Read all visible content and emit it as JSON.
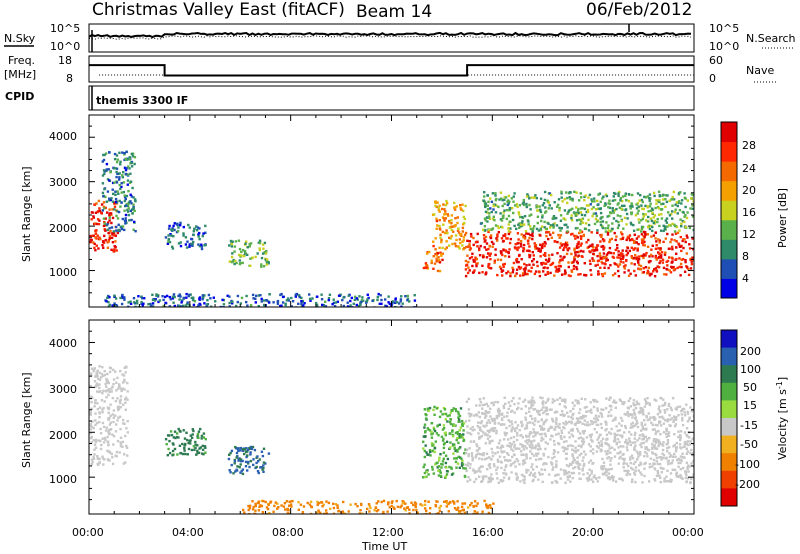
{
  "title_left": "Christmas Valley East (fitACF)",
  "title_beam": "Beam 14",
  "title_date": "06/Feb/2012",
  "panel_nsky": {
    "left_label": "N.Sky",
    "right_label": "N.Search",
    "left_ticks": [
      "10^5",
      "10^0"
    ],
    "right_ticks": [
      "10^5",
      "10^0"
    ]
  },
  "panel_freq": {
    "left_label_1": "Freq.",
    "left_label_2": "[MHz]",
    "right_label": "Nave",
    "left_ticks": [
      "18",
      "8"
    ],
    "right_ticks": [
      "60",
      "0"
    ]
  },
  "cpid": {
    "label": "CPID",
    "program": "themis 3300 IF"
  },
  "x_axis": {
    "label": "Time UT",
    "ticks": [
      "00:00",
      "04:00",
      "08:00",
      "12:00",
      "16:00",
      "20:00",
      "00:00"
    ]
  },
  "power_panel": {
    "ylabel": "Slant Range [km]",
    "yticks": [
      "4000",
      "3000",
      "2000",
      "1000"
    ],
    "colorbar_label": "Power [dB]",
    "colorbar_ticks": [
      "28",
      "24",
      "20",
      "16",
      "12",
      "8",
      "4"
    ],
    "colorbar_colors": [
      "#0000e6",
      "#1f4fb4",
      "#2f8a6a",
      "#5ab04a",
      "#c8d020",
      "#f4a000",
      "#f56a00",
      "#ff2800",
      "#e00000"
    ]
  },
  "velocity_panel": {
    "ylabel": "Slant Range [km]",
    "yticks": [
      "4000",
      "3000",
      "2000",
      "1000"
    ],
    "colorbar_label": "Velocity [m s",
    "colorbar_label_sup": "-1",
    "colorbar_label_end": "]",
    "colorbar_ticks": [
      "200",
      "100",
      "50",
      "15",
      "-15",
      "-50",
      "-100",
      "-200"
    ],
    "colorbar_colors": [
      "#1010c0",
      "#2a60b0",
      "#2e7a50",
      "#4fb040",
      "#9adc40",
      "#c8c8c8",
      "#f0b020",
      "#f08000",
      "#f04000",
      "#e00000"
    ]
  },
  "chart_data": {
    "type": "heatmap",
    "x_range": [
      "00:00",
      "24:00"
    ],
    "y_range_km": [
      180,
      4500
    ],
    "power_features": [
      {
        "t_start": 0.0,
        "t_end": 1.1,
        "range_start_km": 1450,
        "range_end_km": 2600,
        "power_db": 28
      },
      {
        "t_start": 0.5,
        "t_end": 1.8,
        "range_start_km": 1900,
        "range_end_km": 3700,
        "power_db": 8
      },
      {
        "t_start": 3.0,
        "t_end": 4.6,
        "range_start_km": 1500,
        "range_end_km": 2100,
        "power_db": 6
      },
      {
        "t_start": 5.5,
        "t_end": 7.1,
        "range_start_km": 1100,
        "range_end_km": 1700,
        "power_db": 12
      },
      {
        "t_start": 13.2,
        "t_end": 14.0,
        "range_start_km": 1000,
        "range_end_km": 1500,
        "power_db": 24
      },
      {
        "t_start": 13.6,
        "t_end": 14.9,
        "range_start_km": 1500,
        "range_end_km": 2600,
        "power_db": 20
      },
      {
        "t_start": 14.9,
        "t_end": 24.0,
        "range_start_km": 900,
        "range_end_km": 1900,
        "power_db": 28
      },
      {
        "t_start": 15.5,
        "t_end": 24.0,
        "range_start_km": 1900,
        "range_end_km": 2800,
        "power_db": 12
      },
      {
        "t_start": 0.5,
        "t_end": 13.0,
        "range_start_km": 180,
        "range_end_km": 500,
        "power_db": 6
      }
    ],
    "velocity_features": [
      {
        "t_start": 0.0,
        "t_end": 1.5,
        "range_start_km": 1300,
        "range_end_km": 3500,
        "velocity_ms": 0
      },
      {
        "t_start": 3.0,
        "t_end": 4.6,
        "range_start_km": 1500,
        "range_end_km": 2100,
        "velocity_ms": 60
      },
      {
        "t_start": 5.5,
        "t_end": 7.1,
        "range_start_km": 1100,
        "range_end_km": 1700,
        "velocity_ms": 80
      },
      {
        "t_start": 13.2,
        "t_end": 14.9,
        "range_start_km": 1000,
        "range_end_km": 2600,
        "velocity_ms": 40
      },
      {
        "t_start": 14.9,
        "t_end": 24.0,
        "range_start_km": 900,
        "range_end_km": 2800,
        "velocity_ms": 0
      },
      {
        "t_start": 6.0,
        "t_end": 16.0,
        "range_start_km": 180,
        "range_end_km": 500,
        "velocity_ms": -60
      }
    ],
    "frequency_mhz": [
      {
        "t_start": 0.0,
        "t_end": 3.0,
        "value": 14.5
      },
      {
        "t_start": 3.0,
        "t_end": 15.0,
        "value": 10.5
      },
      {
        "t_start": 15.0,
        "t_end": 24.0,
        "value": 14.5
      }
    ]
  }
}
